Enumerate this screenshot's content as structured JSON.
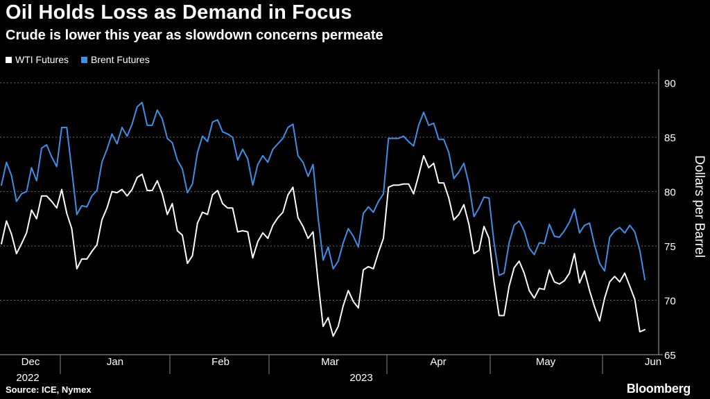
{
  "header": {
    "title": "Oil Holds Loss as Demand in Focus",
    "subtitle": "Crude is lower this year as slowdown concerns permeate"
  },
  "footer": {
    "source": "Source: ICE, Nymex",
    "logo": "Bloomberg"
  },
  "colors": {
    "wti": "#ffffff",
    "brent": "#3d8fe8",
    "grid": "#6a6a6a"
  },
  "chart_data": {
    "type": "line",
    "title": "Oil Holds Loss as Demand in Focus",
    "ylabel": "Dollars per Barrel",
    "xlabel": "",
    "ylim": [
      65,
      91
    ],
    "yticks": [
      65,
      70,
      75,
      80,
      85,
      90
    ],
    "x_tick_labels": [
      "Dec",
      "Jan",
      "Feb",
      "Mar",
      "Apr",
      "May",
      "Jun"
    ],
    "x_year_labels": [
      "2022",
      "2023"
    ],
    "legend": [
      "WTI Futures",
      "Brent Futures"
    ],
    "series": [
      {
        "name": "WTI Futures",
        "values": [
          75.2,
          77.3,
          76.1,
          74.3,
          75.2,
          76.2,
          78.3,
          77.5,
          79.6,
          79.6,
          79.1,
          78.5,
          80.2,
          78.0,
          76.6,
          72.9,
          73.8,
          73.8,
          74.5,
          75.1,
          77.4,
          78.5,
          80.0,
          79.9,
          80.2,
          79.6,
          80.2,
          81.3,
          81.6,
          80.1,
          80.1,
          81.0,
          79.8,
          77.9,
          78.9,
          76.4,
          76.0,
          73.4,
          74.1,
          77.1,
          78.1,
          77.9,
          79.7,
          80.1,
          78.9,
          78.5,
          78.5,
          76.3,
          76.4,
          76.3,
          73.9,
          75.4,
          76.2,
          75.7,
          76.9,
          77.6,
          78.1,
          79.7,
          80.4,
          77.6,
          76.8,
          75.7,
          76.3,
          71.7,
          67.6,
          68.4,
          66.7,
          67.6,
          69.5,
          70.9,
          69.9,
          69.3,
          72.8,
          73.1,
          72.9,
          74.4,
          75.7,
          80.4,
          80.6,
          80.6,
          80.7,
          80.7,
          79.8,
          81.5,
          83.3,
          82.2,
          82.6,
          80.8,
          80.8,
          79.4,
          77.4,
          77.9,
          78.8,
          77.0,
          74.3,
          74.6,
          76.8,
          75.7,
          71.7,
          68.6,
          68.6,
          71.3,
          73.0,
          73.6,
          72.5,
          70.9,
          70.2,
          71.1,
          71.0,
          72.8,
          71.7,
          71.5,
          71.8,
          72.5,
          74.3,
          71.6,
          72.7,
          70.9,
          69.4,
          68.1,
          70.2,
          71.7,
          72.2,
          71.7,
          72.5,
          71.3,
          70.1,
          67.1,
          67.3
        ]
      },
      {
        "name": "Brent Futures",
        "values": [
          80.6,
          82.7,
          81.5,
          79.1,
          79.8,
          80.0,
          82.2,
          81.0,
          84.0,
          84.3,
          83.2,
          82.3,
          85.9,
          85.9,
          82.0,
          77.9,
          78.7,
          78.6,
          79.6,
          80.1,
          82.7,
          83.9,
          85.3,
          84.4,
          85.9,
          85.1,
          86.2,
          87.8,
          88.2,
          86.1,
          86.1,
          87.5,
          86.7,
          84.9,
          84.5,
          82.9,
          82.1,
          79.9,
          80.7,
          83.6,
          85.1,
          84.6,
          86.4,
          86.6,
          85.5,
          85.3,
          85.0,
          82.9,
          83.9,
          83.0,
          80.6,
          82.5,
          83.3,
          82.7,
          83.9,
          84.4,
          84.9,
          85.9,
          86.2,
          83.3,
          82.7,
          81.4,
          82.5,
          77.6,
          73.7,
          74.9,
          72.9,
          73.6,
          75.3,
          76.6,
          75.9,
          74.9,
          78.0,
          78.6,
          78.1,
          79.1,
          79.8,
          84.9,
          84.9,
          84.9,
          85.1,
          84.6,
          84.2,
          86.1,
          87.3,
          86.1,
          86.3,
          84.8,
          84.8,
          83.6,
          81.2,
          81.8,
          82.6,
          80.7,
          77.7,
          78.5,
          79.5,
          79.4,
          75.3,
          72.3,
          72.5,
          75.3,
          76.9,
          77.3,
          76.4,
          74.8,
          74.2,
          75.3,
          75.2,
          77.0,
          75.9,
          75.8,
          76.4,
          77.2,
          78.4,
          76.2,
          76.9,
          77.1,
          75.1,
          73.4,
          72.7,
          75.8,
          76.4,
          76.7,
          76.2,
          76.9,
          76.3,
          74.6,
          71.9
        ]
      }
    ]
  }
}
